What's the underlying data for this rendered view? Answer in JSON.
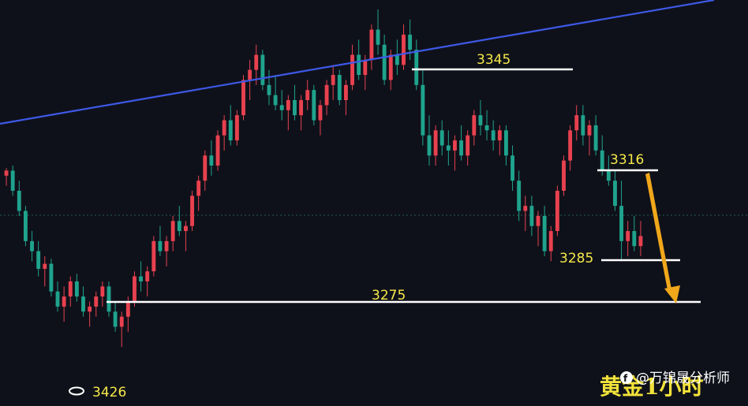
{
  "chart_data": {
    "type": "candlestick",
    "title": "黄金1小时",
    "watermark": "@万锦晟分析师",
    "colors": {
      "up": "#e8414f",
      "down": "#1fa38d",
      "trend": "#3d59e8",
      "level": "#ffffff",
      "arrow": "#f0a71a",
      "label": "#f5e94a",
      "background": "#0f111a"
    },
    "levels": [
      {
        "name": "resistance-3345",
        "label": "3345"
      },
      {
        "name": "resistance-3316",
        "label": "3316"
      },
      {
        "name": "support-3285",
        "label": "3285"
      },
      {
        "name": "support-3275",
        "label": "3275"
      },
      {
        "name": "low-marker-3426",
        "label": "3426"
      }
    ],
    "candles": [
      [
        3318,
        3321,
        3314,
        3320
      ],
      [
        3320,
        3322,
        3310,
        3312
      ],
      [
        3312,
        3316,
        3302,
        3304
      ],
      [
        3304,
        3306,
        3290,
        3292
      ],
      [
        3292,
        3296,
        3284,
        3288
      ],
      [
        3288,
        3292,
        3278,
        3281
      ],
      [
        3281,
        3286,
        3274,
        3283
      ],
      [
        3283,
        3285,
        3270,
        3272
      ],
      [
        3272,
        3276,
        3264,
        3266
      ],
      [
        3266,
        3274,
        3260,
        3270
      ],
      [
        3270,
        3278,
        3266,
        3276
      ],
      [
        3276,
        3279,
        3268,
        3270
      ],
      [
        3270,
        3274,
        3262,
        3264
      ],
      [
        3264,
        3268,
        3258,
        3266
      ],
      [
        3266,
        3272,
        3262,
        3270
      ],
      [
        3270,
        3276,
        3266,
        3274
      ],
      [
        3274,
        3276,
        3262,
        3264
      ],
      [
        3264,
        3268,
        3256,
        3258
      ],
      [
        3258,
        3264,
        3250,
        3262
      ],
      [
        3262,
        3270,
        3256,
        3268
      ],
      [
        3268,
        3280,
        3266,
        3278
      ],
      [
        3278,
        3284,
        3272,
        3276
      ],
      [
        3276,
        3282,
        3270,
        3280
      ],
      [
        3280,
        3294,
        3278,
        3292
      ],
      [
        3292,
        3298,
        3286,
        3288
      ],
      [
        3288,
        3294,
        3282,
        3292
      ],
      [
        3292,
        3302,
        3288,
        3300
      ],
      [
        3300,
        3306,
        3294,
        3296
      ],
      [
        3296,
        3300,
        3288,
        3298
      ],
      [
        3298,
        3312,
        3296,
        3310
      ],
      [
        3310,
        3318,
        3304,
        3316
      ],
      [
        3316,
        3328,
        3312,
        3326
      ],
      [
        3326,
        3332,
        3318,
        3322
      ],
      [
        3322,
        3336,
        3320,
        3334
      ],
      [
        3334,
        3342,
        3328,
        3340
      ],
      [
        3340,
        3346,
        3330,
        3332
      ],
      [
        3332,
        3344,
        3330,
        3342
      ],
      [
        3342,
        3358,
        3340,
        3356
      ],
      [
        3356,
        3364,
        3348,
        3360
      ],
      [
        3360,
        3370,
        3354,
        3366
      ],
      [
        3366,
        3368,
        3352,
        3354
      ],
      [
        3354,
        3360,
        3346,
        3350
      ],
      [
        3350,
        3358,
        3344,
        3346
      ],
      [
        3346,
        3352,
        3340,
        3344
      ],
      [
        3344,
        3350,
        3336,
        3348
      ],
      [
        3348,
        3354,
        3340,
        3342
      ],
      [
        3342,
        3350,
        3336,
        3348
      ],
      [
        3348,
        3356,
        3344,
        3352
      ],
      [
        3352,
        3354,
        3338,
        3340
      ],
      [
        3340,
        3348,
        3334,
        3346
      ],
      [
        3346,
        3356,
        3342,
        3354
      ],
      [
        3354,
        3362,
        3348,
        3358
      ],
      [
        3358,
        3360,
        3346,
        3348
      ],
      [
        3348,
        3356,
        3342,
        3354
      ],
      [
        3354,
        3370,
        3352,
        3366
      ],
      [
        3366,
        3372,
        3356,
        3358
      ],
      [
        3358,
        3366,
        3352,
        3364
      ],
      [
        3364,
        3378,
        3360,
        3376
      ],
      [
        3376,
        3384,
        3366,
        3370
      ],
      [
        3370,
        3374,
        3354,
        3356
      ],
      [
        3356,
        3368,
        3352,
        3366
      ],
      [
        3366,
        3372,
        3358,
        3362
      ],
      [
        3362,
        3378,
        3360,
        3374
      ],
      [
        3374,
        3380,
        3364,
        3368
      ],
      [
        3368,
        3372,
        3352,
        3354
      ],
      [
        3354,
        3360,
        3330,
        3334
      ],
      [
        3334,
        3342,
        3322,
        3326
      ],
      [
        3326,
        3338,
        3322,
        3336
      ],
      [
        3336,
        3340,
        3326,
        3330
      ],
      [
        3330,
        3336,
        3322,
        3328
      ],
      [
        3328,
        3334,
        3320,
        3332
      ],
      [
        3332,
        3338,
        3324,
        3326
      ],
      [
        3326,
        3336,
        3322,
        3334
      ],
      [
        3334,
        3344,
        3330,
        3342
      ],
      [
        3342,
        3348,
        3334,
        3338
      ],
      [
        3338,
        3344,
        3332,
        3336
      ],
      [
        3336,
        3340,
        3328,
        3332
      ],
      [
        3332,
        3338,
        3326,
        3336
      ],
      [
        3336,
        3338,
        3322,
        3326
      ],
      [
        3326,
        3330,
        3312,
        3316
      ],
      [
        3316,
        3320,
        3300,
        3304
      ],
      [
        3304,
        3310,
        3296,
        3306
      ],
      [
        3306,
        3310,
        3294,
        3298
      ],
      [
        3298,
        3304,
        3290,
        3302
      ],
      [
        3302,
        3306,
        3286,
        3288
      ],
      [
        3288,
        3298,
        3284,
        3296
      ],
      [
        3296,
        3314,
        3294,
        3312
      ],
      [
        3312,
        3326,
        3310,
        3324
      ],
      [
        3324,
        3338,
        3320,
        3336
      ],
      [
        3336,
        3346,
        3332,
        3342
      ],
      [
        3342,
        3346,
        3330,
        3334
      ],
      [
        3334,
        3340,
        3326,
        3338
      ],
      [
        3338,
        3342,
        3326,
        3328
      ],
      [
        3328,
        3334,
        3318,
        3320
      ],
      [
        3320,
        3326,
        3314,
        3316
      ],
      [
        3316,
        3320,
        3304,
        3306
      ],
      [
        3306,
        3316,
        3284,
        3292
      ],
      [
        3292,
        3300,
        3286,
        3296
      ],
      [
        3296,
        3302,
        3288,
        3290
      ],
      [
        3290,
        3300,
        3286,
        3294
      ]
    ]
  }
}
